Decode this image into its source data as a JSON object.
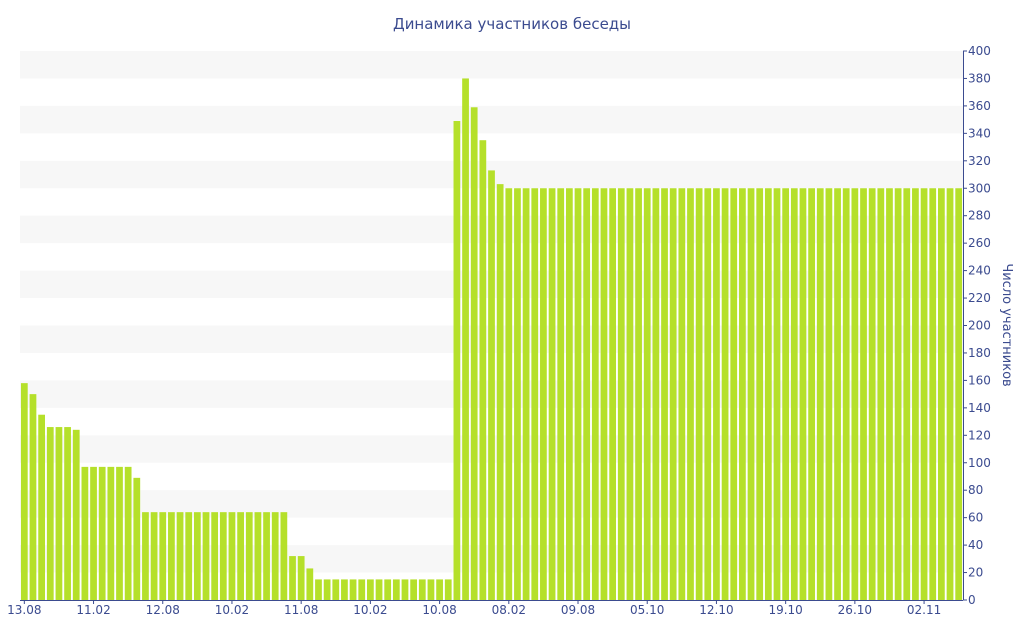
{
  "chart_data": {
    "type": "bar",
    "title": "Динамика участников беседы",
    "xlabel": "",
    "ylabel": "Число участников",
    "ylim": [
      0,
      400
    ],
    "y_ticks": [
      0,
      20,
      40,
      60,
      80,
      100,
      120,
      140,
      160,
      180,
      200,
      220,
      240,
      260,
      280,
      300,
      320,
      340,
      360,
      380,
      400
    ],
    "x_tick_labels": [
      {
        "label": "13.08",
        "index": 0
      },
      {
        "label": "11.02",
        "index": 8
      },
      {
        "label": "12.08",
        "index": 16
      },
      {
        "label": "10.02",
        "index": 24
      },
      {
        "label": "11.08",
        "index": 32
      },
      {
        "label": "10.02",
        "index": 40
      },
      {
        "label": "10.08",
        "index": 48
      },
      {
        "label": "08.02",
        "index": 56
      },
      {
        "label": "09.08",
        "index": 64
      },
      {
        "label": "05.10",
        "index": 72
      },
      {
        "label": "12.10",
        "index": 80
      },
      {
        "label": "19.10",
        "index": 88
      },
      {
        "label": "26.10",
        "index": 96
      },
      {
        "label": "02.11",
        "index": 104
      }
    ],
    "values": [
      158,
      150,
      135,
      126,
      126,
      126,
      124,
      97,
      97,
      97,
      97,
      97,
      97,
      89,
      64,
      64,
      64,
      64,
      64,
      64,
      64,
      64,
      64,
      64,
      64,
      64,
      64,
      64,
      64,
      64,
      64,
      32,
      32,
      23,
      15,
      15,
      15,
      15,
      15,
      15,
      15,
      15,
      15,
      15,
      15,
      15,
      15,
      15,
      15,
      15,
      349,
      380,
      359,
      335,
      313,
      303,
      300,
      300,
      300,
      300,
      300,
      300,
      300,
      300,
      300,
      300,
      300,
      300,
      300,
      300,
      300,
      300,
      300,
      300,
      300,
      300,
      300,
      300,
      300,
      300,
      300,
      300,
      300,
      300,
      300,
      300,
      300,
      300,
      300,
      300,
      300,
      300,
      300,
      300,
      300,
      300,
      300,
      300,
      300,
      300,
      300,
      300,
      300,
      300,
      300,
      300,
      300,
      300,
      300
    ],
    "grid": "horizontal-bands",
    "legend": "none",
    "colors": {
      "bar": "#b5e02a",
      "band": "#f7f7f7",
      "text": "#3b4b8f",
      "axis": "#3b4b8f"
    }
  }
}
